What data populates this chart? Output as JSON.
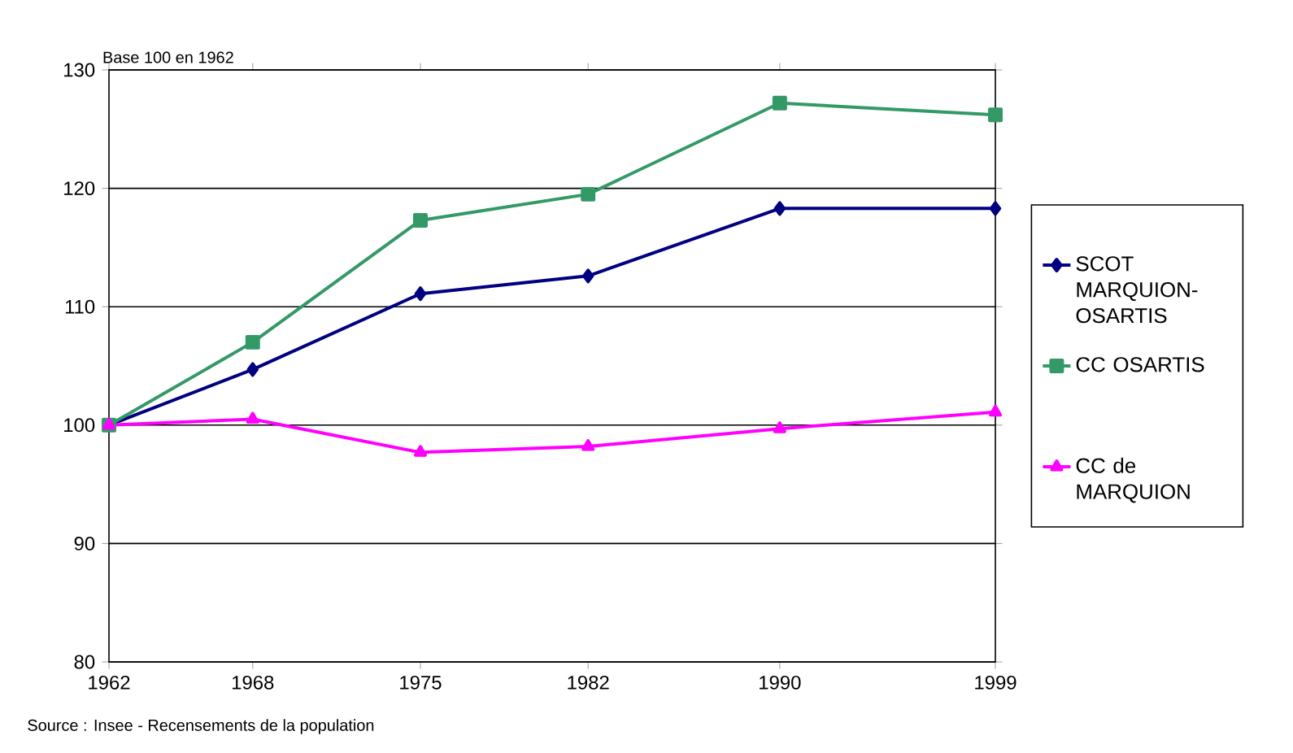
{
  "chart_data": {
    "type": "line",
    "ylabel": "Base 100 en 1962",
    "x": [
      1962,
      1968,
      1975,
      1982,
      1990,
      1999
    ],
    "xlim": [
      1962,
      1999
    ],
    "xticks": [
      1962,
      1968,
      1975,
      1982,
      1990,
      1999
    ],
    "ylim": [
      80,
      130
    ],
    "yticks": [
      80,
      90,
      100,
      110,
      120,
      130
    ],
    "grid": "y",
    "legend": "right",
    "line_style": "solid",
    "series": [
      {
        "name": "SCOT MARQUION-OSARTIS",
        "color": "#000080",
        "marker": "diamond",
        "values": [
          100,
          104.7,
          111.1,
          112.6,
          118.3,
          118.3
        ]
      },
      {
        "name": "CC OSARTIS",
        "color": "#339966",
        "marker": "square",
        "values": [
          100,
          107,
          117.3,
          119.5,
          127.2,
          126.2
        ]
      },
      {
        "name": "CC de MARQUION",
        "color": "#ff00ff",
        "marker": "triangle",
        "values": [
          100,
          100.5,
          97.7,
          98.2,
          99.7,
          101.1
        ]
      }
    ],
    "annotations": [
      "Source : Insee - Recensements de la population"
    ]
  }
}
